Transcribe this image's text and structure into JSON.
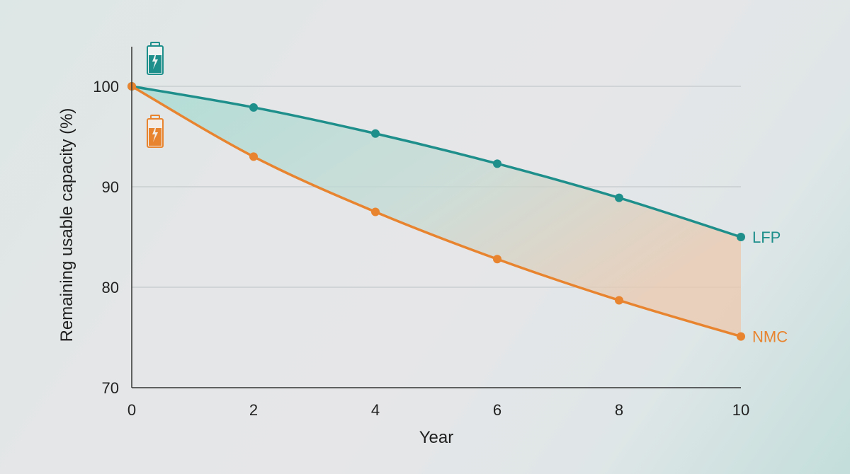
{
  "chart_data": {
    "type": "line",
    "xlabel": "Year",
    "ylabel": "Remaining usable capacity (%)",
    "xlim": [
      0,
      10
    ],
    "ylim": [
      70,
      104
    ],
    "x_ticks": [
      "0",
      "2",
      "4",
      "6",
      "8",
      "10"
    ],
    "y_ticks": [
      "70",
      "80",
      "90",
      "100"
    ],
    "grid": "horizontal",
    "area_between_series": true,
    "series": [
      {
        "name": "LFP",
        "color": "#1f8f8c",
        "icon": "battery-icon",
        "x": [
          0,
          2,
          4,
          6,
          8,
          10
        ],
        "values": [
          100,
          97.9,
          95.3,
          92.3,
          88.9,
          85.0
        ]
      },
      {
        "name": "NMC",
        "color": "#e8842f",
        "icon": "battery-icon",
        "x": [
          0,
          2,
          4,
          6,
          8,
          10
        ],
        "values": [
          100,
          93.0,
          87.5,
          82.8,
          78.7,
          75.1
        ]
      }
    ]
  }
}
